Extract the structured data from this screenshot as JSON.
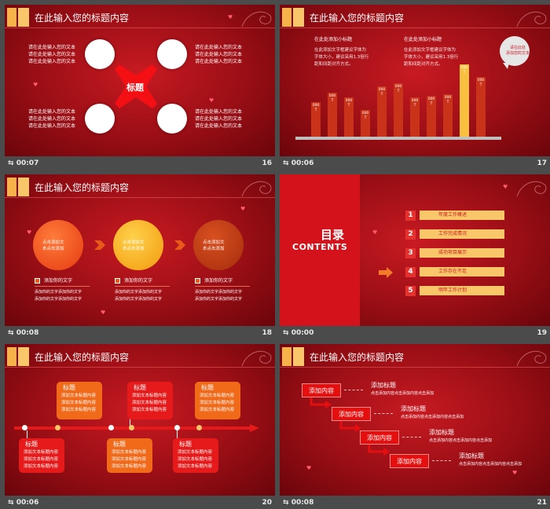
{
  "slides": [
    {
      "title": "在此输入您的标题内容",
      "time": "00:07",
      "number": "16",
      "center_label": "标题",
      "text_left": "请在此处输入您的文本\n请在此处输入您的文本\n请在此处输入您的文本",
      "text_right": "请在此处输入您的文本\n请在此处输入您的文本\n请在此处输入您的文本"
    },
    {
      "title": "在此输入您的标题内容",
      "time": "00:06",
      "number": "17",
      "subtitle1": "在此处添加小标题",
      "body1": "在此添加文字框建议字体为\n字体大小，建议采用1.3倍行\n距和间距对齐方式。",
      "subtitle2": "在此处添加小标题",
      "body2": "在此添加文字框建议字体为\n字体大小，建议采用1.3倍行\n距和间距对齐方式。",
      "bubble": "请在此处\n添加您的文本",
      "bar_label": "000\nT"
    },
    {
      "title": "在此输入您的标题内容",
      "time": "00:08",
      "number": "18",
      "circle_text": "点击添加文\n本点击添加",
      "item_title": "添加你的文字",
      "item_body": "添加你的文字添加你的文字\n添加你的文字添加你的文字"
    },
    {
      "time": "00:00",
      "number": "19",
      "heading_cn": "目录",
      "heading_en": "CONTENTS",
      "items": [
        {
          "num": "1",
          "label": "年度工作概述"
        },
        {
          "num": "2",
          "label": "工作完成情况"
        },
        {
          "num": "3",
          "label": "成功项目展示"
        },
        {
          "num": "4",
          "label": "工作存在不足"
        },
        {
          "num": "5",
          "label": "明年工作计划"
        }
      ]
    },
    {
      "title": "在此输入您的标题内容",
      "time": "00:06",
      "number": "20",
      "box_title": "标题",
      "box_body": "添加文本标题内容\n添加文本标题内容\n添加文本标题内容"
    },
    {
      "title": "在此输入您的标题内容",
      "time": "00:08",
      "number": "21",
      "btn_label": "添加内容",
      "step_title": "添加标题",
      "step_body": "点击添加内容点击添加内容点击添加"
    }
  ]
}
